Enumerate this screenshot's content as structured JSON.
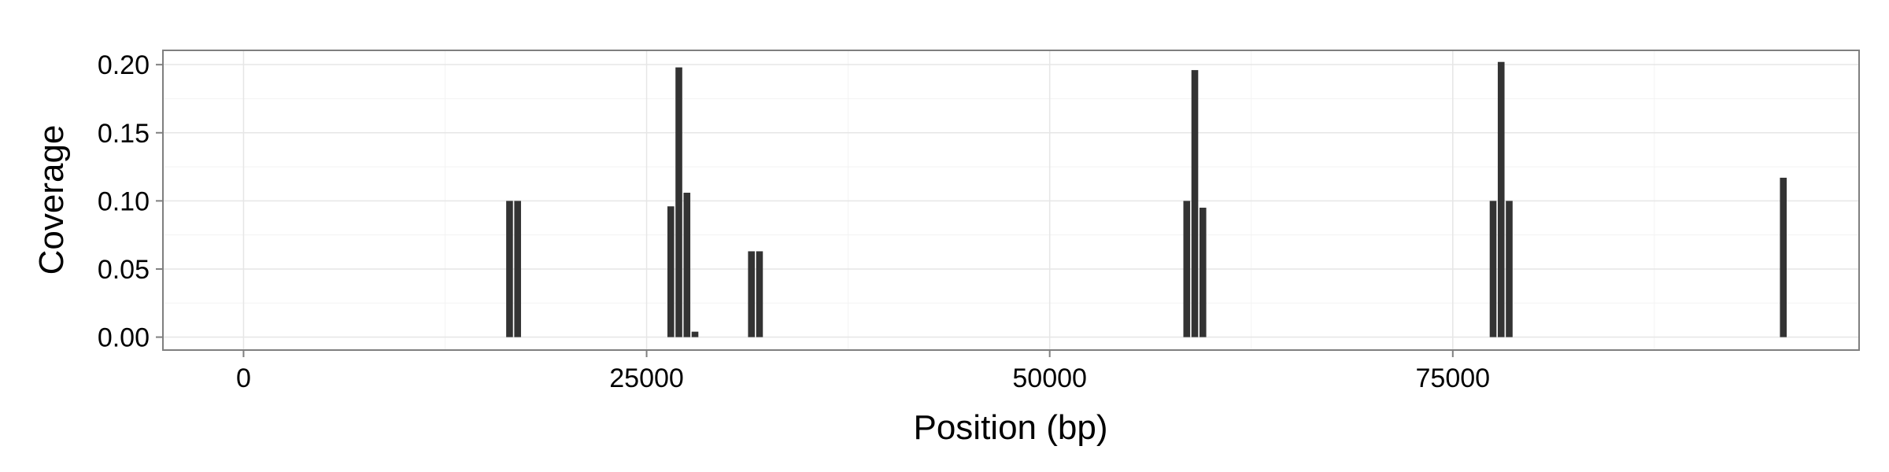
{
  "chart_data": {
    "type": "bar",
    "title": "",
    "xlabel": "Position (bp)",
    "ylabel": "Coverage",
    "xlim": [
      -5000,
      100200
    ],
    "ylim": [
      -0.0095,
      0.2105
    ],
    "x_ticks": [
      0,
      25000,
      50000,
      75000
    ],
    "x_tick_labels": [
      "0",
      "25000",
      "50000",
      "75000"
    ],
    "y_ticks": [
      0.0,
      0.05,
      0.1,
      0.15,
      0.2
    ],
    "y_tick_labels": [
      "0.00",
      "0.05",
      "0.10",
      "0.15",
      "0.20"
    ],
    "bar_width": 420,
    "grid": true,
    "bar_color": "#333333",
    "x": [
      16500,
      17000,
      26500,
      27000,
      27500,
      28000,
      31500,
      32000,
      58500,
      59000,
      59500,
      77500,
      78000,
      78500,
      95500
    ],
    "values": [
      0.1,
      0.1,
      0.096,
      0.198,
      0.106,
      0.004,
      0.063,
      0.063,
      0.1,
      0.196,
      0.095,
      0.1,
      0.202,
      0.1,
      0.117
    ]
  }
}
